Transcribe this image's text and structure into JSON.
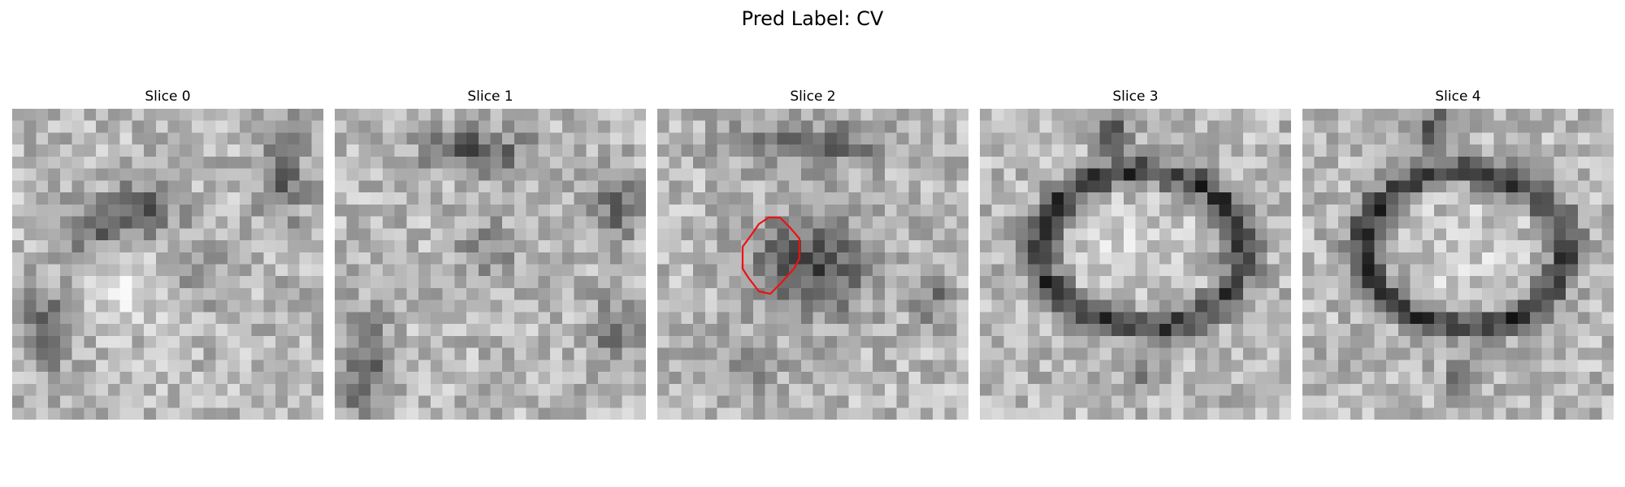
{
  "figure": {
    "title": "Pred Label: CV"
  },
  "slices": [
    {
      "label": "Slice 0",
      "pattern": "blob-left",
      "seed": 11,
      "has_contour": false
    },
    {
      "label": "Slice 1",
      "pattern": "noisy-light",
      "seed": 23,
      "has_contour": false
    },
    {
      "label": "Slice 2",
      "pattern": "dark-center",
      "seed": 37,
      "has_contour": true
    },
    {
      "label": "Slice 3",
      "pattern": "ring",
      "seed": 51,
      "has_contour": false
    },
    {
      "label": "Slice 4",
      "pattern": "ring",
      "seed": 53,
      "has_contour": false
    }
  ],
  "colors": {
    "contour": "#ee1111",
    "colormap": "gray"
  }
}
